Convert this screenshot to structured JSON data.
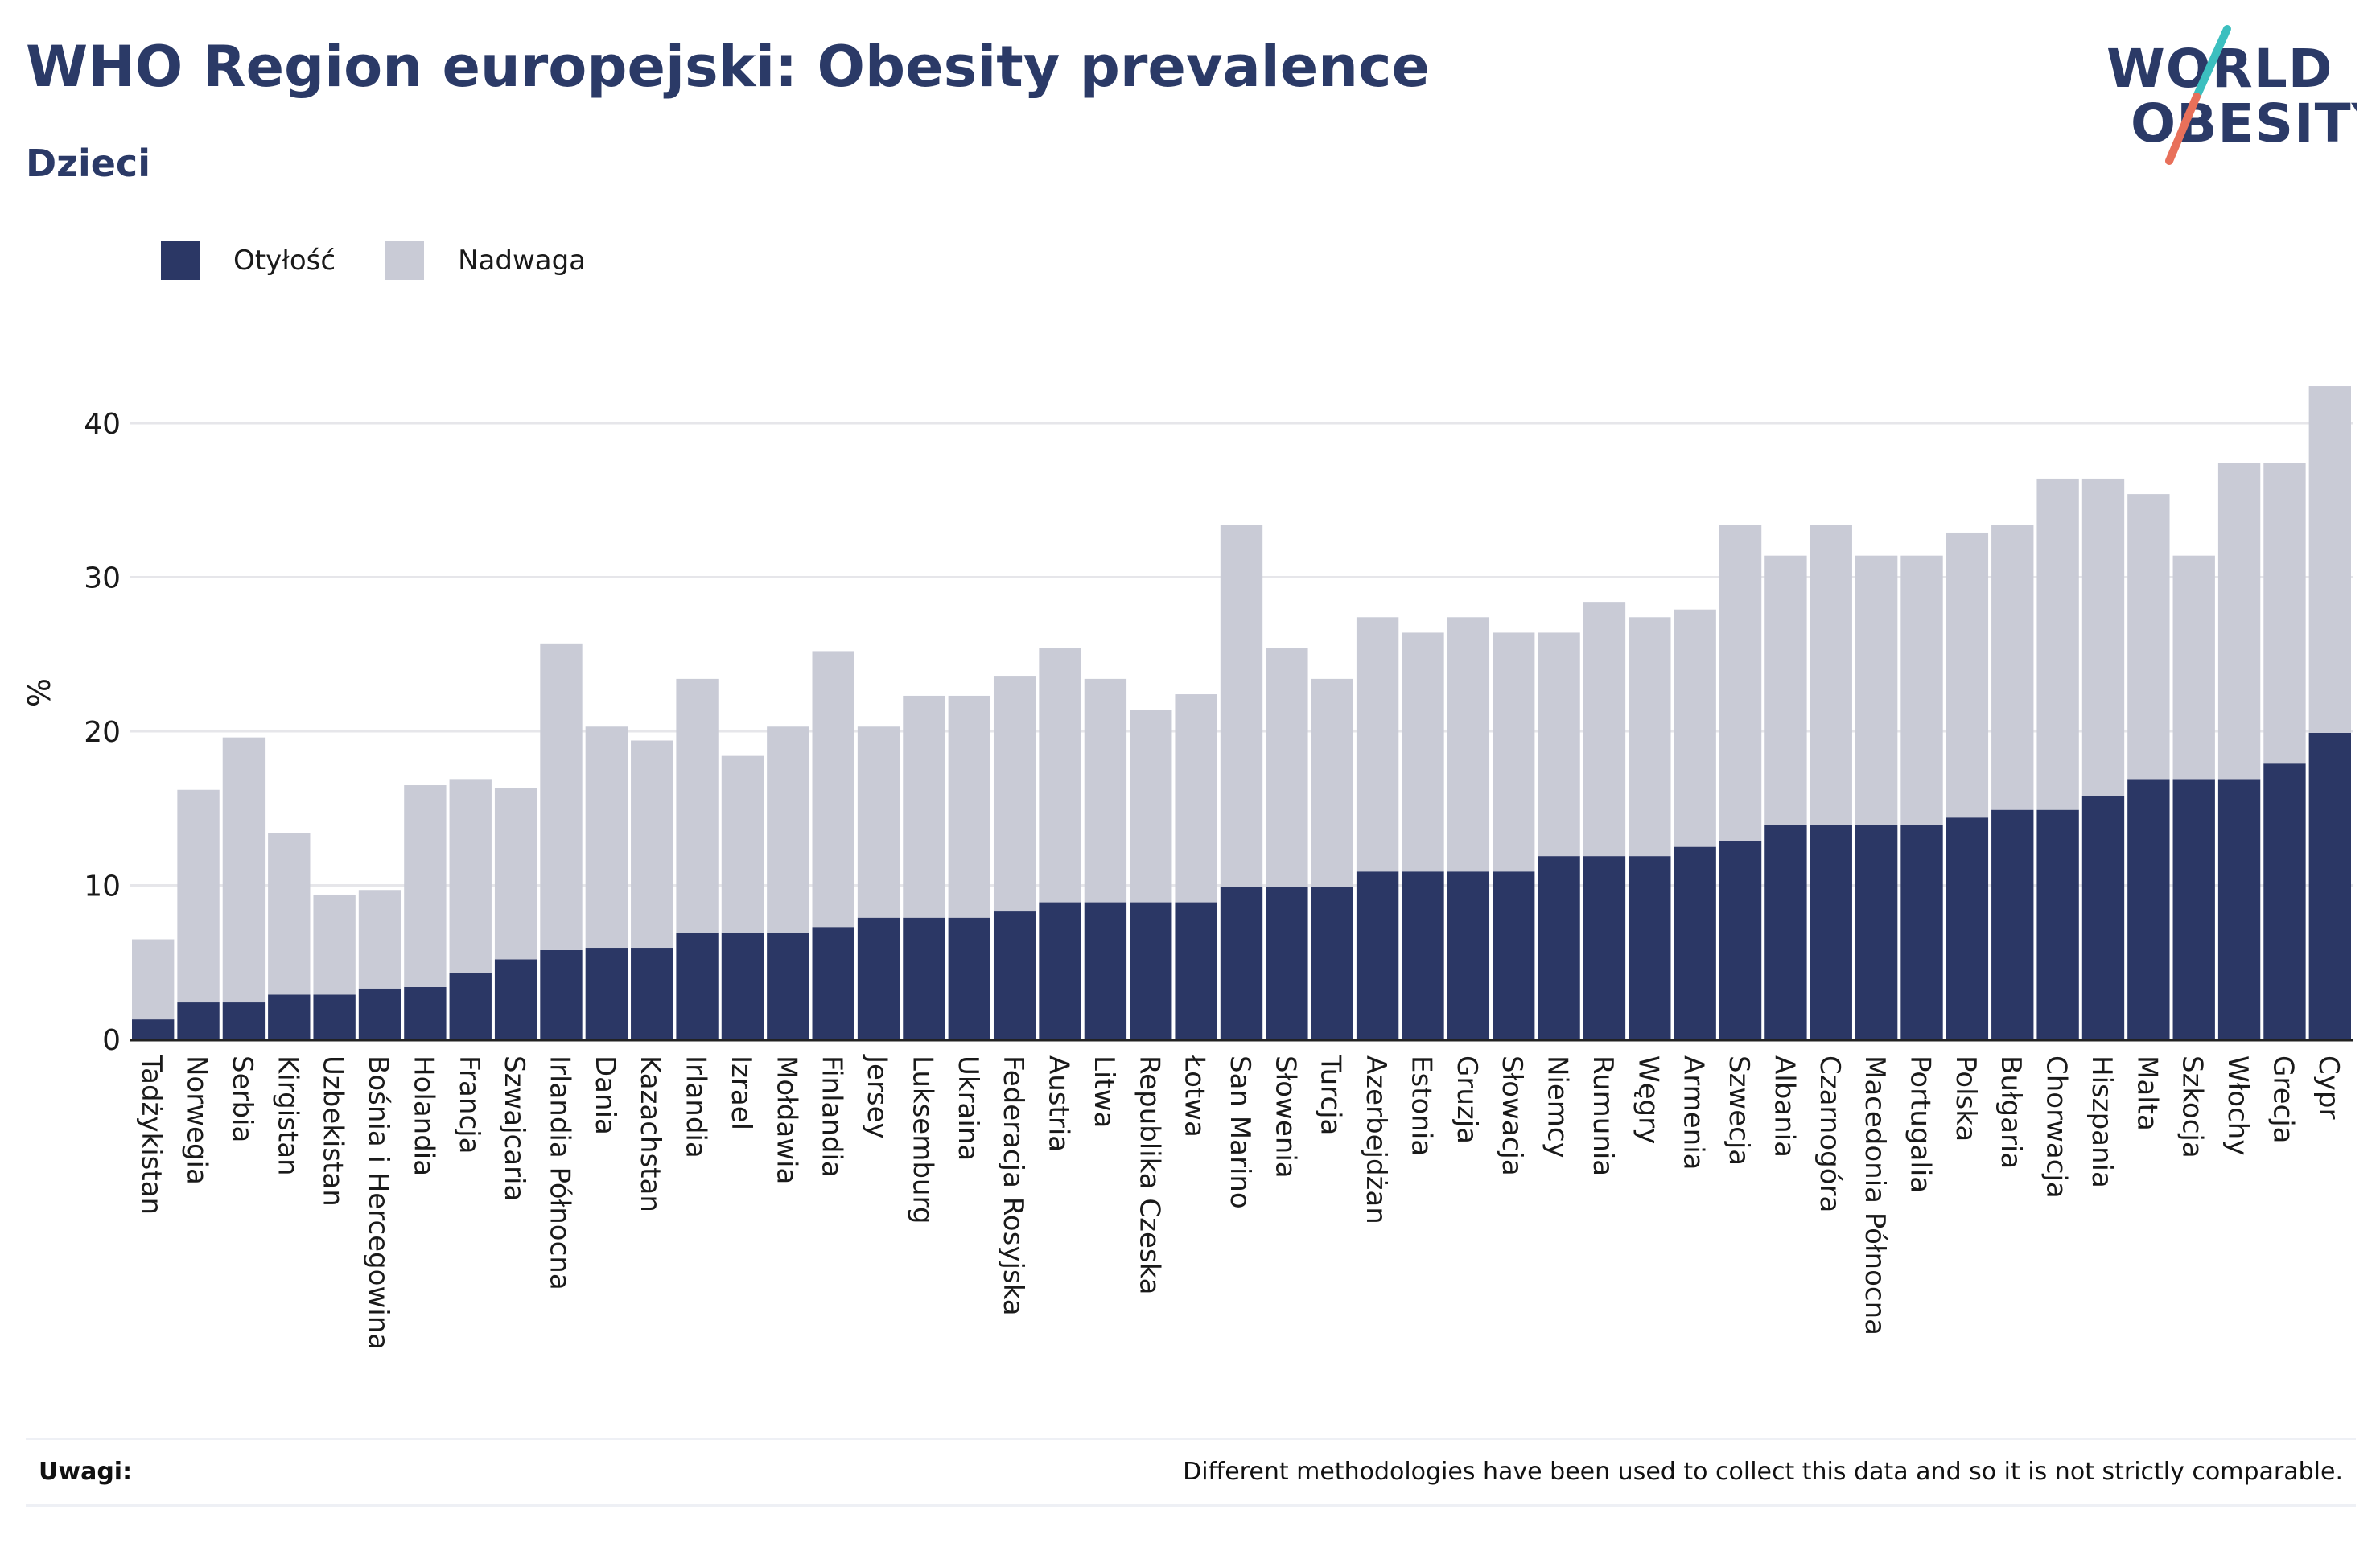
{
  "header": {
    "title": "WHO Region europejski: Obesity prevalence",
    "subtitle": "Dzieci"
  },
  "logo": {
    "line1": "WORLD",
    "line2": "OBESITY",
    "text_color": "#2b3a67",
    "slash_color_top": "#3cbfbf",
    "slash_color_bottom": "#e8705a"
  },
  "legend": {
    "obesity_label": "Otyłość",
    "overweight_label": "Nadwaga"
  },
  "colors": {
    "obesity": "#2b3765",
    "overweight": "#c9cbd6",
    "grid": "#e6e6ea",
    "axis": "#222222"
  },
  "chart_data": {
    "type": "bar",
    "stacked": true,
    "ylabel": "%",
    "xlabel": "",
    "ylim": [
      0,
      45
    ],
    "yticks": [
      0,
      10,
      20,
      30,
      40
    ],
    "grid": true,
    "legend_position": "top-left",
    "categories": [
      "Tadżykistan",
      "Norwegia",
      "Serbia",
      "Kirgistan",
      "Uzbekistan",
      "Bośnia i Hercegowina",
      "Holandia",
      "Francja",
      "Szwajcaria",
      "Irlandia Północna",
      "Dania",
      "Kazachstan",
      "Irlandia",
      "Izrael",
      "Mołdawia",
      "Finlandia",
      "Jersey",
      "Luksemburg",
      "Ukraina",
      "Federacja Rosyjska",
      "Austria",
      "Litwa",
      "Republika Czeska",
      "Łotwa",
      "San Marino",
      "Słowenia",
      "Turcja",
      "Azerbejdżan",
      "Estonia",
      "Gruzja",
      "Słowacja",
      "Niemcy",
      "Rumunia",
      "Węgry",
      "Armenia",
      "Szwecja",
      "Albania",
      "Czarnogóra",
      "Macedonia Północna",
      "Portugalia",
      "Polska",
      "Bułgaria",
      "Chorwacja",
      "Hiszpania",
      "Malta",
      "Szkocja",
      "Włochy",
      "Grecja",
      "Cypr"
    ],
    "series": [
      {
        "name": "Otyłość",
        "values": [
          1.3,
          2.4,
          2.4,
          2.9,
          2.9,
          3.3,
          3.4,
          4.3,
          5.2,
          5.8,
          5.9,
          5.9,
          6.9,
          6.9,
          6.9,
          7.3,
          7.9,
          7.9,
          7.9,
          8.3,
          8.9,
          8.9,
          8.9,
          8.9,
          9.9,
          9.9,
          9.9,
          10.9,
          10.9,
          10.9,
          10.9,
          11.9,
          11.9,
          11.9,
          12.5,
          12.9,
          13.9,
          13.9,
          13.9,
          13.9,
          14.4,
          14.9,
          14.9,
          15.8,
          16.9,
          16.9,
          16.9,
          17.9,
          19.9
        ]
      },
      {
        "name": "Nadwaga",
        "values": [
          5.2,
          13.8,
          17.2,
          10.5,
          6.5,
          6.4,
          13.1,
          12.6,
          11.1,
          19.9,
          14.4,
          13.5,
          16.5,
          11.5,
          13.4,
          17.9,
          12.4,
          14.4,
          14.4,
          15.3,
          16.5,
          14.5,
          12.5,
          13.5,
          23.5,
          15.5,
          13.5,
          16.5,
          15.5,
          16.5,
          15.5,
          14.5,
          16.5,
          15.5,
          15.4,
          20.5,
          17.5,
          19.5,
          17.5,
          17.5,
          18.5,
          18.5,
          21.5,
          20.6,
          18.5,
          14.5,
          20.5,
          19.5,
          22.5
        ]
      }
    ]
  },
  "notes": {
    "label": "Uwagi:",
    "text": "Different methodologies have been used to collect this data and so it is not strictly comparable."
  }
}
